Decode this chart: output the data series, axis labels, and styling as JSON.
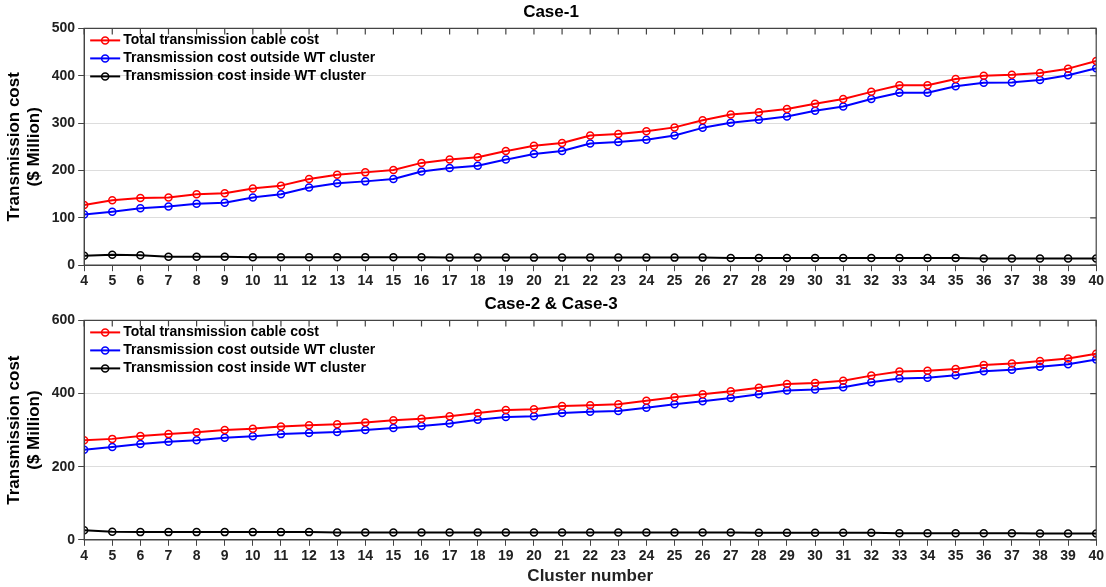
{
  "chart_data": [
    {
      "type": "line",
      "title": "Case-1",
      "ylabel": "Transmission cost\n($ Million)",
      "x": [
        4,
        5,
        6,
        7,
        8,
        9,
        10,
        11,
        12,
        13,
        14,
        15,
        16,
        17,
        18,
        19,
        20,
        21,
        22,
        23,
        24,
        25,
        26,
        27,
        28,
        29,
        30,
        31,
        32,
        33,
        34,
        35,
        36,
        37,
        38,
        39,
        40
      ],
      "xlim": [
        4,
        40
      ],
      "xticks": [
        4,
        5,
        6,
        7,
        8,
        9,
        10,
        11,
        12,
        13,
        14,
        15,
        16,
        17,
        18,
        19,
        20,
        21,
        22,
        23,
        24,
        25,
        26,
        27,
        28,
        29,
        30,
        31,
        32,
        33,
        34,
        35,
        36,
        37,
        38,
        39,
        40
      ],
      "ylim": [
        0,
        500
      ],
      "yticks": [
        0,
        100,
        200,
        300,
        400,
        500
      ],
      "grid": "y",
      "legend": "top left",
      "marker": "circle",
      "line_style": "solid",
      "series": [
        {
          "name": "Total transmission cable cost",
          "color": "#ff0000",
          "values": [
            127,
            137,
            142,
            143,
            150,
            152,
            162,
            168,
            182,
            191,
            196,
            201,
            216,
            223,
            228,
            241,
            252,
            258,
            274,
            277,
            283,
            291,
            306,
            318,
            323,
            330,
            341,
            351,
            366,
            380,
            380,
            393,
            400,
            402,
            406,
            415,
            431
          ]
        },
        {
          "name": "Transmission cost outside WT cluster",
          "color": "#0000ff",
          "values": [
            107,
            113,
            120,
            124,
            130,
            132,
            143,
            150,
            164,
            173,
            177,
            182,
            198,
            205,
            210,
            223,
            235,
            241,
            257,
            260,
            265,
            274,
            290,
            301,
            307,
            314,
            326,
            335,
            351,
            364,
            364,
            378,
            385,
            386,
            391,
            401,
            416
          ]
        },
        {
          "name": "Transmission cost inside WT cluster",
          "color": "#000000",
          "values": [
            20,
            22,
            21,
            18,
            18,
            18,
            17,
            17,
            17,
            17,
            17,
            17,
            17,
            16,
            16,
            16,
            16,
            16,
            16,
            16,
            16,
            16,
            16,
            15,
            15,
            15,
            15,
            15,
            15,
            15,
            15,
            15,
            14,
            14,
            14,
            14,
            14
          ]
        }
      ]
    },
    {
      "type": "line",
      "title": "Case-2 & Case-3",
      "xlabel": "Cluster number",
      "ylabel": "Transmission cost\n($ Million)",
      "x": [
        4,
        5,
        6,
        7,
        8,
        9,
        10,
        11,
        12,
        13,
        14,
        15,
        16,
        17,
        18,
        19,
        20,
        21,
        22,
        23,
        24,
        25,
        26,
        27,
        28,
        29,
        30,
        31,
        32,
        33,
        34,
        35,
        36,
        37,
        38,
        39,
        40
      ],
      "xlim": [
        4,
        40
      ],
      "xticks": [
        4,
        5,
        6,
        7,
        8,
        9,
        10,
        11,
        12,
        13,
        14,
        15,
        16,
        17,
        18,
        19,
        20,
        21,
        22,
        23,
        24,
        25,
        26,
        27,
        28,
        29,
        30,
        31,
        32,
        33,
        34,
        35,
        36,
        37,
        38,
        39,
        40
      ],
      "ylim": [
        0,
        600
      ],
      "yticks": [
        0,
        200,
        400,
        600
      ],
      "grid": "y",
      "legend": "top left",
      "marker": "circle",
      "line_style": "solid",
      "series": [
        {
          "name": "Total transmission cable cost",
          "color": "#ff0000",
          "values": [
            272,
            276,
            284,
            289,
            294,
            300,
            304,
            310,
            313,
            316,
            321,
            327,
            331,
            338,
            347,
            355,
            357,
            366,
            368,
            371,
            380,
            390,
            398,
            406,
            416,
            426,
            429,
            435,
            449,
            460,
            462,
            467,
            478,
            482,
            489,
            496,
            509
          ]
        },
        {
          "name": "Transmission cost outside WT cluster",
          "color": "#0000ff",
          "values": [
            246,
            254,
            262,
            268,
            272,
            279,
            283,
            289,
            292,
            295,
            300,
            306,
            311,
            318,
            328,
            336,
            338,
            347,
            350,
            352,
            361,
            371,
            379,
            388,
            398,
            408,
            411,
            417,
            431,
            441,
            443,
            450,
            461,
            465,
            473,
            480,
            493
          ]
        },
        {
          "name": "Transmission cost inside WT cluster",
          "color": "#000000",
          "values": [
            26,
            22,
            21,
            21,
            21,
            21,
            21,
            21,
            21,
            20,
            20,
            20,
            20,
            20,
            20,
            20,
            20,
            20,
            20,
            20,
            20,
            20,
            20,
            20,
            19,
            19,
            19,
            19,
            19,
            18,
            18,
            18,
            18,
            18,
            17,
            17,
            17
          ]
        }
      ]
    }
  ]
}
